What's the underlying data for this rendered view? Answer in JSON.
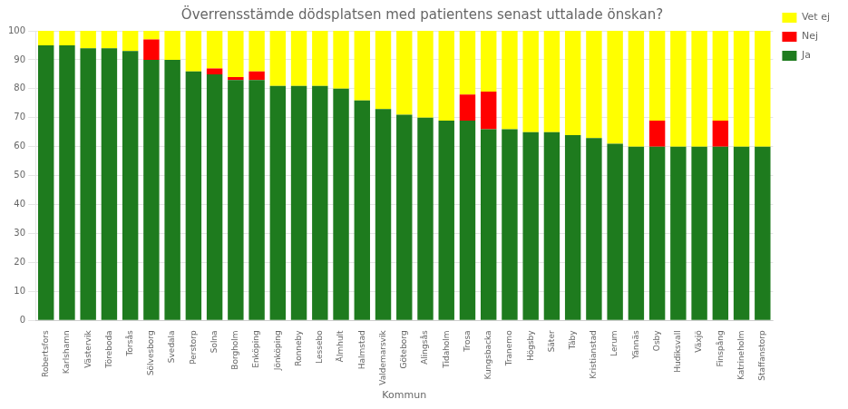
{
  "chart_data": {
    "type": "bar",
    "title": "Överrensstämde dödsplatsen med patientens senast uttalade önskan?",
    "xlabel": "Kommun",
    "categories": [
      "Robertsfors",
      "Karlshamn",
      "Västervik",
      "Töreboda",
      "Torsås",
      "Sölvesborg",
      "Svedala",
      "Perstorp",
      "Solna",
      "Borgholm",
      "Enköping",
      "Jönköping",
      "Ronneby",
      "Lessebo",
      "Älmhult",
      "Halmstad",
      "Valdemarsvik",
      "Göteborg",
      "Alingsås",
      "Tidaholm",
      "Trosa",
      "Kungsbacka",
      "Tranemo",
      "Högsby",
      "Säter",
      "Täby",
      "Kristianstad",
      "Lerum",
      "Yännäs",
      "Osby",
      "Hudiksvall",
      "Växjö",
      "Finspång",
      "Katrineholm",
      "Staffanstorp"
    ],
    "series": [
      {
        "name": "Ja",
        "color": "#1e7b1e",
        "values": [
          95,
          95,
          94,
          94,
          93,
          90,
          90,
          86,
          85,
          83,
          83,
          81,
          81,
          81,
          80,
          76,
          73,
          71,
          70,
          69,
          69,
          66,
          66,
          65,
          65,
          64,
          63,
          61,
          60,
          60,
          60,
          60,
          60,
          60,
          60
        ]
      },
      {
        "name": "Nej",
        "color": "#ff0000",
        "values": [
          0,
          0,
          0,
          0,
          0,
          7,
          0,
          0,
          2,
          1,
          3,
          0,
          0,
          0,
          0,
          0,
          0,
          0,
          0,
          0,
          9,
          13,
          0,
          0,
          0,
          0,
          0,
          0,
          0,
          9,
          0,
          0,
          9,
          0,
          0
        ]
      },
      {
        "name": "Vet ej",
        "color": "#ffff00",
        "values": [
          5,
          5,
          6,
          6,
          7,
          3,
          10,
          14,
          13,
          16,
          14,
          19,
          19,
          19,
          20,
          24,
          27,
          29,
          30,
          31,
          22,
          21,
          34,
          35,
          35,
          36,
          37,
          39,
          40,
          31,
          40,
          40,
          31,
          40,
          40
        ]
      }
    ],
    "stacked": true,
    "ylim": [
      0,
      100
    ],
    "yticks": [
      0,
      10,
      20,
      30,
      40,
      50,
      60,
      70,
      80,
      90,
      100
    ],
    "grid": true,
    "legend": "right"
  }
}
